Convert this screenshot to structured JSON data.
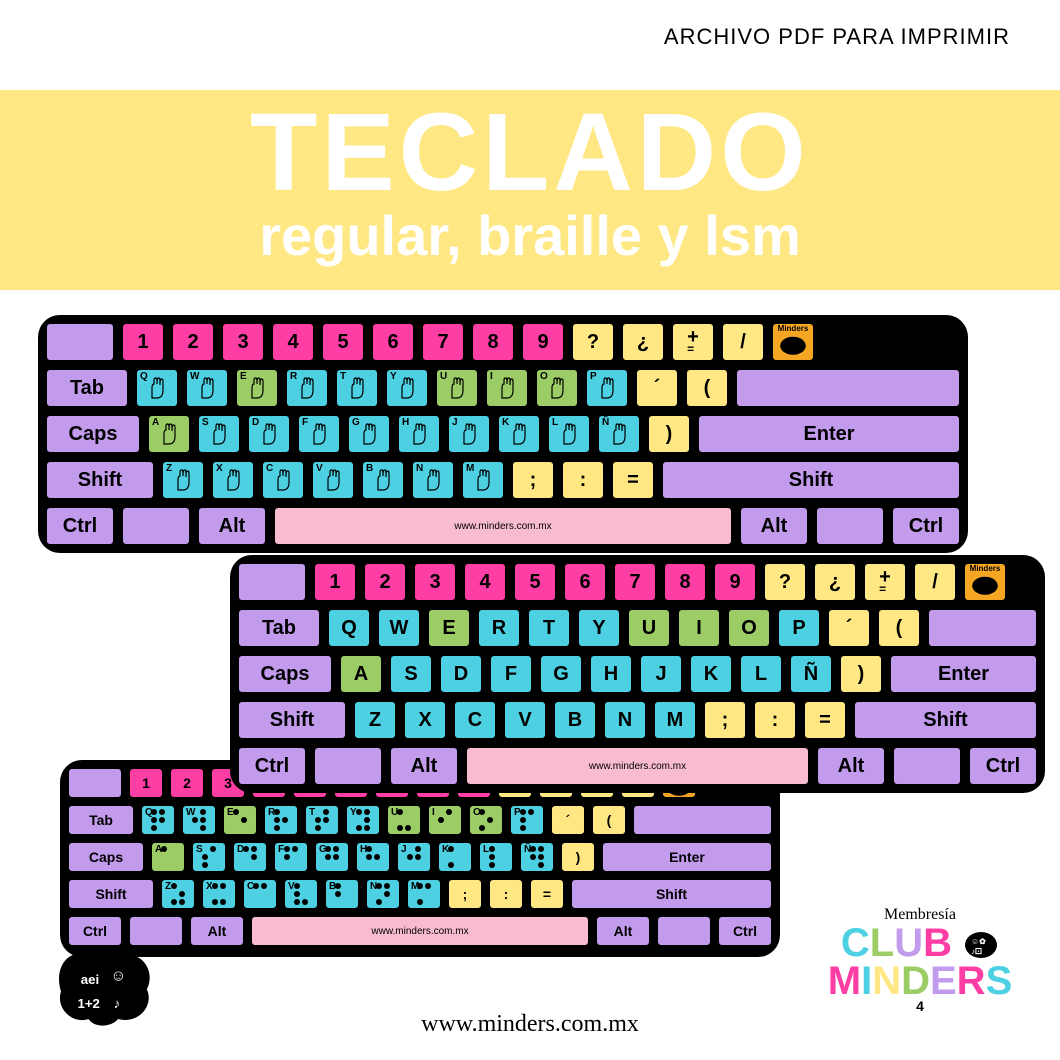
{
  "header": {
    "label": "ARCHIVO PDF PARA IMPRIMIR"
  },
  "banner": {
    "title": "TECLADO",
    "subtitle": "regular, braille y lsm"
  },
  "colors": {
    "banner_bg": "#ffe884",
    "purple": "#c29bec",
    "pink": "#ff3ea5",
    "yellow": "#ffe884",
    "cyan": "#4dd0e1",
    "green": "#9ccc65",
    "light_pink": "#f8bbd0",
    "orange": "#f5a623",
    "black": "#000000",
    "white": "#ffffff"
  },
  "keys": {
    "numbers": [
      "1",
      "2",
      "3",
      "4",
      "5",
      "6",
      "7",
      "8",
      "9"
    ],
    "symbols_row1": [
      "?",
      "¿",
      "+",
      "/"
    ],
    "row_q": [
      "Q",
      "W",
      "E",
      "R",
      "T",
      "Y",
      "U",
      "I",
      "O",
      "P"
    ],
    "row_q_syms": [
      "´",
      "("
    ],
    "row_a": [
      "A",
      "S",
      "D",
      "F",
      "G",
      "H",
      "J",
      "K",
      "L",
      "Ñ"
    ],
    "row_a_sym": ")",
    "row_z": [
      "Z",
      "X",
      "C",
      "V",
      "B",
      "N",
      "M"
    ],
    "row_z_syms": [
      ";",
      ":",
      "="
    ],
    "tab": "Tab",
    "caps": "Caps",
    "shift": "Shift",
    "ctrl": "Ctrl",
    "alt": "Alt",
    "enter": "Enter",
    "spacebar_text": "www.minders.com.mx",
    "logo_key": "Minders",
    "plus_sub": "="
  },
  "vowels": [
    "A",
    "E",
    "I",
    "O",
    "U"
  ],
  "braille": {
    "A": [
      1,
      0,
      0,
      0,
      0,
      0
    ],
    "B": [
      1,
      0,
      1,
      0,
      0,
      0
    ],
    "C": [
      1,
      1,
      0,
      0,
      0,
      0
    ],
    "D": [
      1,
      1,
      0,
      1,
      0,
      0
    ],
    "E": [
      1,
      0,
      0,
      1,
      0,
      0
    ],
    "F": [
      1,
      1,
      1,
      0,
      0,
      0
    ],
    "G": [
      1,
      1,
      1,
      1,
      0,
      0
    ],
    "H": [
      1,
      0,
      1,
      1,
      0,
      0
    ],
    "I": [
      0,
      1,
      1,
      0,
      0,
      0
    ],
    "J": [
      0,
      1,
      1,
      1,
      0,
      0
    ],
    "K": [
      1,
      0,
      0,
      0,
      1,
      0
    ],
    "L": [
      1,
      0,
      1,
      0,
      1,
      0
    ],
    "M": [
      1,
      1,
      0,
      0,
      1,
      0
    ],
    "N": [
      1,
      1,
      0,
      1,
      1,
      0
    ],
    "Ñ": [
      1,
      1,
      1,
      1,
      0,
      1
    ],
    "O": [
      1,
      0,
      0,
      1,
      1,
      0
    ],
    "P": [
      1,
      1,
      1,
      0,
      1,
      0
    ],
    "Q": [
      1,
      1,
      1,
      1,
      1,
      0
    ],
    "R": [
      1,
      0,
      1,
      1,
      1,
      0
    ],
    "S": [
      0,
      1,
      1,
      0,
      1,
      0
    ],
    "T": [
      0,
      1,
      1,
      1,
      1,
      0
    ],
    "U": [
      1,
      0,
      0,
      0,
      1,
      1
    ],
    "V": [
      1,
      0,
      1,
      0,
      1,
      1
    ],
    "W": [
      0,
      1,
      1,
      1,
      0,
      1
    ],
    "X": [
      1,
      1,
      0,
      0,
      1,
      1
    ],
    "Y": [
      1,
      1,
      0,
      1,
      1,
      1
    ],
    "Z": [
      1,
      0,
      0,
      1,
      1,
      1
    ]
  },
  "footer": {
    "brand": "Minders",
    "url": "www.minders.com.mx",
    "membership": "Membresía",
    "club_line1": "CLUB",
    "club_line2": "MINDERS",
    "exponent": "4"
  }
}
